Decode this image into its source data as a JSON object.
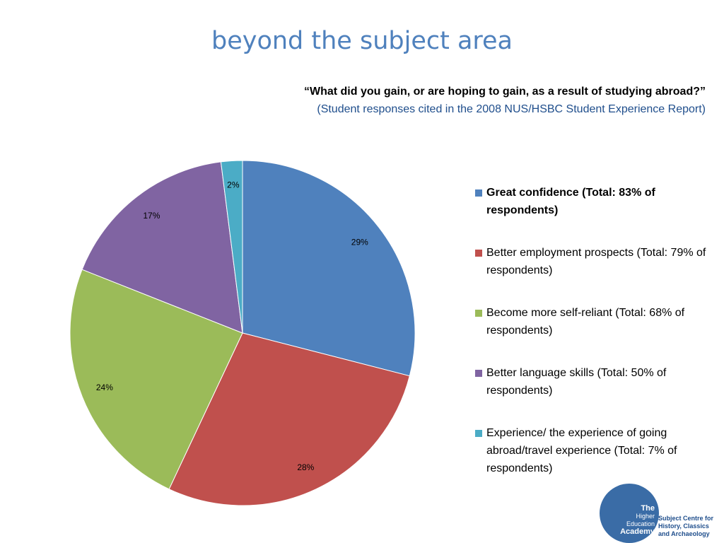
{
  "slide": {
    "title": "beyond the subject area",
    "question": "“What did you gain, or are hoping to gain, as a result of studying abroad?”",
    "source": "(Student responses cited in the 2008 NUS/HSBC Student Experience Report)"
  },
  "chart_data": {
    "type": "pie",
    "title": "",
    "categories": [
      "Great confidence (Total: 83% of respondents)",
      "Better employment prospects (Total: 79% of respondents)",
      "Become more self-reliant (Total: 68% of respondents)",
      "Better language skills (Total: 50% of respondents)",
      "Experience/ the experience of going abroad/travel experience (Total: 7% of respondents)"
    ],
    "values": [
      29,
      28,
      24,
      17,
      2
    ],
    "data_labels": [
      "29%",
      "28%",
      "24%",
      "17%",
      "2%"
    ],
    "colors": [
      "#4f81bd",
      "#c0504d",
      "#9bbb59",
      "#8064a2",
      "#4bacc6"
    ],
    "legend_position": "right",
    "start": "12 o'clock",
    "direction": "clockwise"
  },
  "legend": {
    "items": [
      {
        "label": "Great confidence (Total: 83% of respondents)",
        "color": "#4f81bd"
      },
      {
        "label": "Better employment prospects (Total: 79% of respondents)",
        "color": "#c0504d"
      },
      {
        "label": "Become more self-reliant (Total: 68% of respondents)",
        "color": "#9bbb59"
      },
      {
        "label": "Better language skills (Total: 50% of respondents)",
        "color": "#8064a2"
      },
      {
        "label": "Experience/ the experience of going abroad/travel experience (Total: 7% of respondents)",
        "color": "#4bacc6"
      }
    ]
  },
  "logo": {
    "line1": "The",
    "line2": "Higher",
    "line3": "Education",
    "line4": "Academy",
    "subject_line1": "Subject Centre for",
    "subject_line2": "History, Classics",
    "subject_line3": "and Archaeology"
  }
}
